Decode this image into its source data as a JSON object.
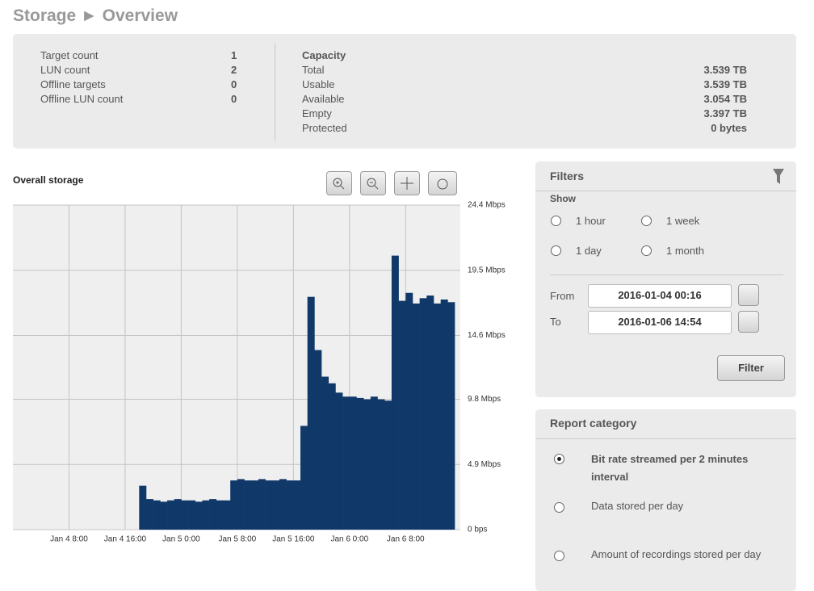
{
  "header": {
    "title": "Storage ► Overview"
  },
  "storage_summary": {
    "rows": [
      {
        "label": "Target count",
        "value": "1"
      },
      {
        "label": "LUN count",
        "value": "2"
      },
      {
        "label": "Offline targets",
        "value": "0"
      },
      {
        "label": "Offline LUN count",
        "value": "0"
      }
    ]
  },
  "capacity": {
    "title": "Capacity",
    "rows": [
      {
        "label": "Total",
        "value": "3.539 TB"
      },
      {
        "label": "Usable",
        "value": "3.539 TB"
      },
      {
        "label": "Available",
        "value": "3.054 TB"
      },
      {
        "label": "Empty",
        "value": "3.397 TB"
      },
      {
        "label": "Protected",
        "value": "0 bytes"
      }
    ]
  },
  "chart_data": {
    "type": "bar",
    "title": "Overall storage",
    "color": "#10396a",
    "grid": true,
    "x": [
      0,
      1,
      2,
      3,
      4,
      5,
      6,
      7,
      8,
      9,
      10,
      11,
      12,
      13,
      14,
      15,
      16,
      17,
      18,
      19,
      20,
      21,
      22,
      23,
      24,
      25,
      26,
      27,
      28,
      29,
      30,
      31,
      32,
      33,
      34,
      35,
      36,
      37,
      38,
      39,
      40,
      41,
      42,
      43,
      44,
      45,
      46,
      47,
      48,
      49,
      50,
      51,
      52,
      53,
      54,
      55,
      56,
      57,
      58,
      59,
      60,
      61,
      62
    ],
    "values": [
      0,
      0,
      0,
      0,
      0,
      0,
      0,
      0,
      0,
      0,
      0,
      0,
      0,
      0,
      0,
      0,
      0,
      0,
      3.3,
      2.3,
      2.2,
      2.1,
      2.2,
      2.3,
      2.2,
      2.2,
      2.1,
      2.2,
      2.3,
      2.2,
      2.2,
      3.7,
      3.8,
      3.7,
      3.7,
      3.8,
      3.7,
      3.7,
      3.8,
      3.7,
      3.7,
      7.8,
      17.5,
      13.5,
      11.5,
      11.0,
      10.3,
      10.0,
      10.0,
      9.9,
      9.8,
      10.0,
      9.8,
      9.7,
      20.6,
      17.2,
      17.8,
      17.0,
      17.4,
      17.6,
      17.0,
      17.3,
      17.1
    ],
    "xlim": [
      0,
      63.8
    ],
    "xticks": [
      {
        "value": 8,
        "label": "Jan 4 8:00"
      },
      {
        "value": 16,
        "label": "Jan 4 16:00"
      },
      {
        "value": 24,
        "label": "Jan 5 0:00"
      },
      {
        "value": 32,
        "label": "Jan 5 8:00"
      },
      {
        "value": 40,
        "label": "Jan 5 16:00"
      },
      {
        "value": 48,
        "label": "Jan 6 0:00"
      },
      {
        "value": 56,
        "label": "Jan 6 8:00"
      }
    ],
    "ylim": [
      0,
      24.4
    ],
    "yticks": [
      {
        "value": 0,
        "label": "0 bps"
      },
      {
        "value": 4.9,
        "label": "4.9 Mbps"
      },
      {
        "value": 9.8,
        "label": "9.8 Mbps"
      },
      {
        "value": 14.6,
        "label": "14.6 Mbps"
      },
      {
        "value": 19.5,
        "label": "19.5 Mbps"
      },
      {
        "value": 24.4,
        "label": "24.4 Mbps"
      }
    ]
  },
  "filters": {
    "title": "Filters",
    "show_label": "Show",
    "options": [
      "1 hour",
      "1 week",
      "1 day",
      "1 month"
    ],
    "from_label": "From",
    "from_value": "2016-01-04 00:16",
    "to_label": "To",
    "to_value": "2016-01-06 14:54",
    "button": "Filter"
  },
  "report_category": {
    "title": "Report category",
    "options": [
      "Bit rate streamed per 2 minutes interval",
      "Data stored per day",
      "Amount of recordings stored per day"
    ]
  }
}
